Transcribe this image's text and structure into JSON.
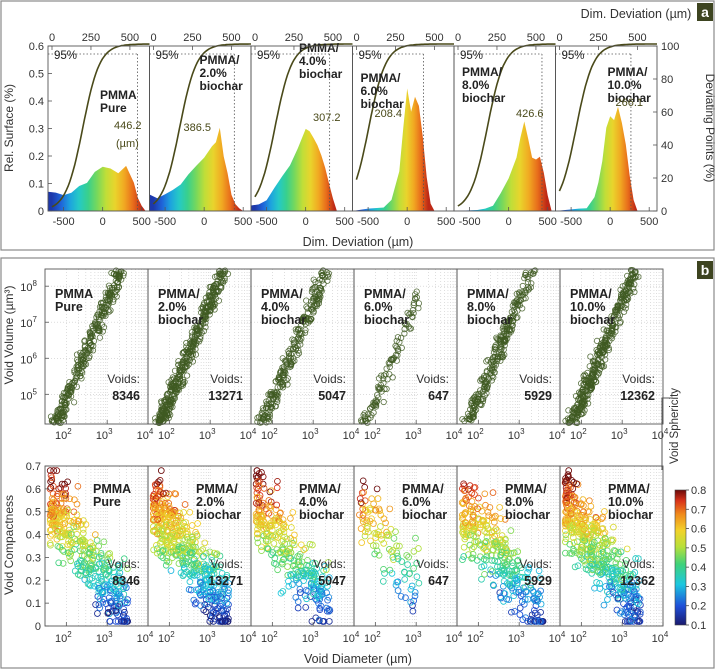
{
  "colors": {
    "frame": "#8a8a8a",
    "curve": "#4a4a1a",
    "scatter": "#3f5a22",
    "axis_text": "#333333",
    "panel_label_bg": "#3d4420",
    "panel_label_text": "#ffffff",
    "bold_text": "#222222",
    "value_text": "#4a4a1a"
  },
  "panel_a": {
    "label": "a",
    "top_axis_label": "Dim. Deviation (µm)",
    "bottom_axis_label": "Dim. Deviation (µm)",
    "left_axis_label": "Rel. Surface (%)",
    "right_axis_label": "Deviating Points (%)",
    "percent_label": "95%",
    "value_unit": "(µm)",
    "chart_data": {
      "type": "area",
      "x_range": [
        -700,
        600
      ],
      "x_ticks": [
        -500,
        0,
        500
      ],
      "top_x_range": [
        0,
        600
      ],
      "top_x_ticks": [
        0,
        250,
        500
      ],
      "left_y_range": [
        0,
        0.6
      ],
      "left_y_ticks": [
        "0",
        "0.1",
        "0.2",
        "0.3",
        "0.4",
        "0.5",
        "0.6"
      ],
      "right_y_range": [
        0,
        100
      ],
      "right_y_ticks": [
        0,
        20,
        40,
        60,
        80,
        100
      ],
      "samples": [
        {
          "name": "PMMA Pure",
          "name_lines": [
            "PMMA",
            "Pure"
          ],
          "dev95": 446.2,
          "dev95_label": "446.2",
          "hist_x": [
            -700,
            -600,
            -500,
            -400,
            -300,
            -200,
            -100,
            0,
            100,
            200,
            300,
            400,
            450,
            500,
            550
          ],
          "hist_y": [
            0.07,
            0.065,
            0.06,
            0.065,
            0.085,
            0.1,
            0.14,
            0.165,
            0.15,
            0.135,
            0.16,
            0.1,
            0.05,
            0.015,
            0
          ]
        },
        {
          "name": "PMMA/2.0% biochar",
          "name_lines": [
            "PMMA/",
            "2.0%",
            "biochar"
          ],
          "dev95": 386.5,
          "dev95_label": "386.5",
          "hist_x": [
            -700,
            -600,
            -500,
            -400,
            -300,
            -200,
            -100,
            0,
            100,
            150,
            200,
            250,
            300,
            350,
            400,
            450,
            500
          ],
          "hist_y": [
            0.06,
            0.05,
            0.06,
            0.08,
            0.1,
            0.13,
            0.16,
            0.19,
            0.24,
            0.25,
            0.3,
            0.2,
            0.14,
            0.06,
            0.02,
            0.005,
            0
          ]
        },
        {
          "name": "PMMA/4.0% biochar",
          "name_lines": [
            "PMMA/",
            "4.0%",
            "biochar"
          ],
          "dev95": 307.2,
          "dev95_label": "307.2",
          "hist_x": [
            -700,
            -600,
            -500,
            -400,
            -300,
            -200,
            -100,
            0,
            50,
            100,
            150,
            200,
            250,
            300,
            350,
            400
          ],
          "hist_y": [
            0.02,
            0.025,
            0.04,
            0.08,
            0.13,
            0.17,
            0.23,
            0.3,
            0.29,
            0.26,
            0.24,
            0.2,
            0.16,
            0.1,
            0.04,
            0
          ]
        },
        {
          "name": "PMMA/6.0% biochar",
          "name_lines": [
            "PMMA/",
            "6.0%",
            "biochar"
          ],
          "dev95": 208.4,
          "dev95_label": "208.4",
          "hist_x": [
            -700,
            -500,
            -300,
            -200,
            -100,
            -50,
            0,
            50,
            100,
            150,
            200,
            250,
            300,
            350
          ],
          "hist_y": [
            0,
            0.005,
            0.015,
            0.04,
            0.14,
            0.3,
            0.45,
            0.36,
            0.42,
            0.38,
            0.27,
            0.12,
            0.03,
            0
          ]
        },
        {
          "name": "PMMA/8.0% biochar",
          "name_lines": [
            "PMMA/",
            "8.0%",
            "biochar"
          ],
          "dev95": 426.6,
          "dev95_label": "426.6",
          "hist_x": [
            -700,
            -400,
            -300,
            -200,
            -100,
            0,
            100,
            150,
            200,
            250,
            300,
            350,
            400,
            450,
            500,
            550
          ],
          "hist_y": [
            0,
            0.005,
            0.01,
            0.02,
            0.06,
            0.12,
            0.2,
            0.27,
            0.33,
            0.26,
            0.2,
            0.19,
            0.2,
            0.14,
            0.06,
            0
          ]
        },
        {
          "name": "PMMA/10.0% biochar",
          "name_lines": [
            "PMMA/",
            "10.0%",
            "biochar"
          ],
          "dev95": 266.1,
          "dev95_label": "266.1",
          "hist_x": [
            -700,
            -400,
            -300,
            -200,
            -150,
            -100,
            -50,
            0,
            50,
            100,
            150,
            200,
            250,
            300,
            350
          ],
          "hist_y": [
            0,
            0.005,
            0.01,
            0.05,
            0.1,
            0.18,
            0.3,
            0.35,
            0.33,
            0.38,
            0.32,
            0.24,
            0.13,
            0.04,
            0
          ]
        }
      ]
    }
  },
  "panel_b": {
    "label": "b",
    "top_y_axis_label": "Void Volume (µm³)",
    "bottom_y_axis_label": "Void Compactness",
    "x_axis_label": "Void Diameter (µm)",
    "colorbar_label": "Void Sphericity",
    "voids_label": "Voids:",
    "chart_data": {
      "type": "scatter",
      "x_scale": "log",
      "x_range": [
        30,
        10000
      ],
      "x_ticks": [
        {
          "exp": 2,
          "text": "10"
        },
        {
          "exp": 3,
          "text": "10"
        },
        {
          "exp": 4,
          "text": "10"
        }
      ],
      "top_y_scale": "log",
      "top_y_range": [
        15000,
        300000000
      ],
      "top_y_ticks": [
        {
          "exp": 5,
          "text": "10"
        },
        {
          "exp": 6,
          "text": "10"
        },
        {
          "exp": 7,
          "text": "10"
        },
        {
          "exp": 8,
          "text": "10"
        }
      ],
      "bottom_y_range": [
        0,
        0.7
      ],
      "bottom_y_ticks": [
        "0",
        "0.1",
        "0.2",
        "0.3",
        "0.4",
        "0.5",
        "0.6",
        "0.7"
      ],
      "colorbar_range": [
        0.1,
        0.8
      ],
      "colorbar_ticks": [
        "0.1",
        "0.2",
        "0.3",
        "0.4",
        "0.5",
        "0.6",
        "0.7",
        "0.8"
      ],
      "volume_fit": {
        "log_v_at_log_d_2": 4.85,
        "slope": 2.7
      },
      "compactness_fit": {
        "c_at_log_d_1_7": 0.5,
        "slope_per_decade": -0.24
      },
      "samples": [
        {
          "name": "PMMA Pure",
          "name_lines": [
            "PMMA",
            "Pure"
          ],
          "voids": 8346,
          "d_min": 40,
          "d_max": 3200
        },
        {
          "name": "PMMA/2.0% biochar",
          "name_lines": [
            "PMMA/",
            "2.0%",
            "biochar"
          ],
          "voids": 13271,
          "d_min": 40,
          "d_max": 3000
        },
        {
          "name": "PMMA/4.0% biochar",
          "name_lines": [
            "PMMA/",
            "4.0%",
            "biochar"
          ],
          "voids": 5047,
          "d_min": 40,
          "d_max": 2600
        },
        {
          "name": "PMMA/6.0% biochar",
          "name_lines": [
            "PMMA/",
            "6.0%",
            "biochar"
          ],
          "voids": 647,
          "d_min": 40,
          "d_max": 1300
        },
        {
          "name": "PMMA/8.0% biochar",
          "name_lines": [
            "PMMA/",
            "8.0%",
            "biochar"
          ],
          "voids": 5929,
          "d_min": 40,
          "d_max": 4000
        },
        {
          "name": "PMMA/10.0% biochar",
          "name_lines": [
            "PMMA/",
            "10.0%",
            "biochar"
          ],
          "voids": 12362,
          "d_min": 40,
          "d_max": 2800
        }
      ]
    }
  }
}
